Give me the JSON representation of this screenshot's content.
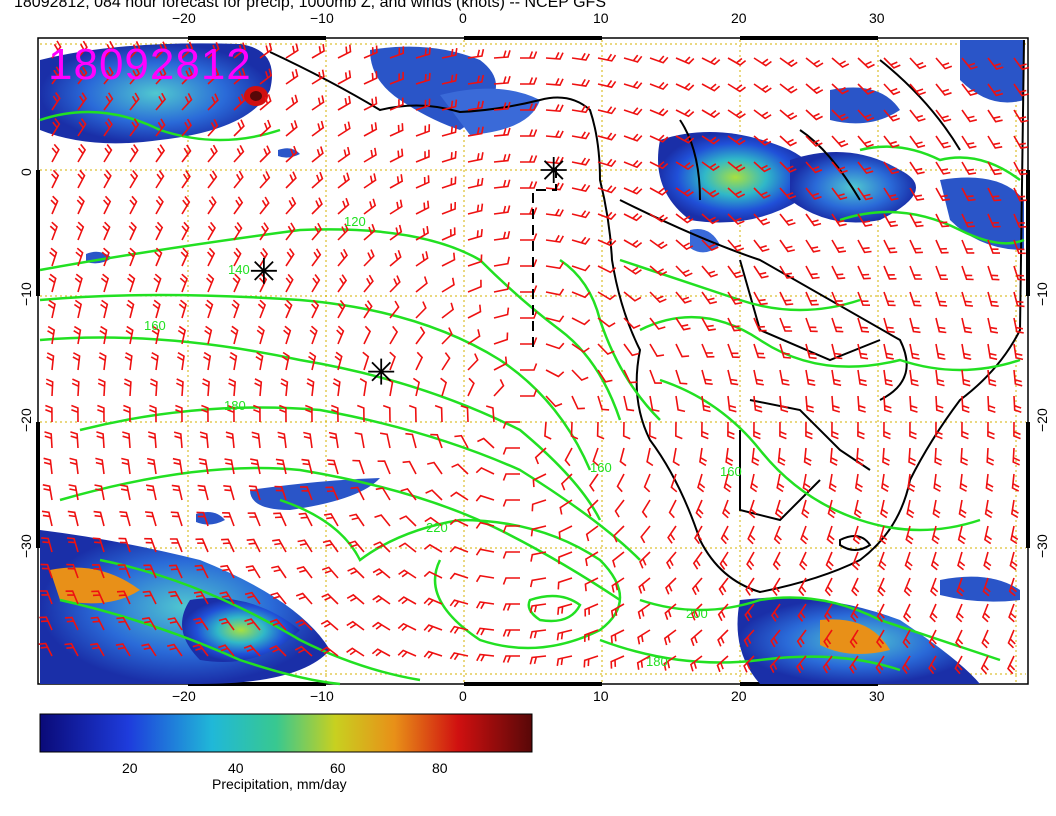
{
  "title": "18092812, 084 hour forecast for precip, 1000mb Z, and winds (knots) -- NCEP GFS",
  "stamp": "18092812",
  "x_ticks_top": [
    "−20",
    "−10",
    "0",
    "10",
    "20",
    "30"
  ],
  "x_ticks_bottom": [
    "−20",
    "−10",
    "0",
    "10",
    "20",
    "30"
  ],
  "y_ticks_left": [
    "0",
    "−10",
    "−20",
    "−30"
  ],
  "y_ticks_right": [
    "−10",
    "−20",
    "−30"
  ],
  "contour_labels": [
    "120",
    "140",
    "160",
    "180",
    "200",
    "220",
    "180",
    "160",
    "160"
  ],
  "colorbar": {
    "ticks": [
      "20",
      "40",
      "60",
      "80"
    ],
    "label": "Precipitation, mm/day"
  },
  "colors": {
    "contour": "#22e022",
    "wind": "#ee1111",
    "grid": "#d4b000",
    "stamp": "#ff00ff",
    "coast": "#000000"
  },
  "map_data": {
    "lon_range": [
      -30,
      41
    ],
    "lat_range": [
      -38,
      10
    ],
    "storm_markers": [
      {
        "lon": 6.5,
        "lat": 0
      },
      {
        "lon": -14.5,
        "lat": -8
      },
      {
        "lon": -6,
        "lat": -16
      }
    ]
  }
}
